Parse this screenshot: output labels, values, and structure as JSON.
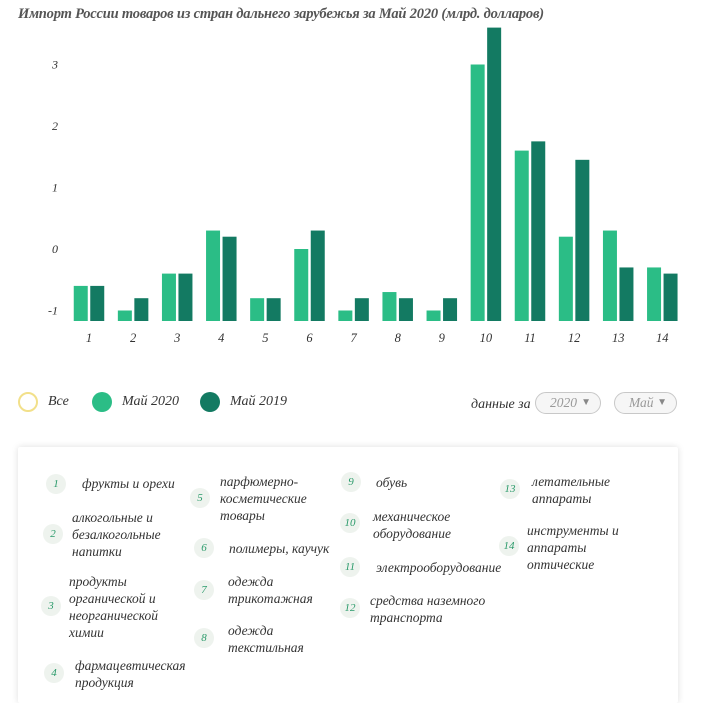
{
  "title": "Импорт России товаров из стран дальнего зарубежья за Май 2020 (млрд. долларов)",
  "chart_data": {
    "type": "bar",
    "categories": [
      "1",
      "2",
      "3",
      "4",
      "5",
      "6",
      "7",
      "8",
      "9",
      "10",
      "11",
      "12",
      "13",
      "14"
    ],
    "series": [
      {
        "name": "Май 2020",
        "color": "#2bbd86",
        "values": [
          -0.6,
          -1.0,
          -0.4,
          0.3,
          -0.8,
          0.0,
          -1.0,
          -0.7,
          -1.0,
          3.0,
          1.6,
          0.2,
          0.3,
          -0.3
        ]
      },
      {
        "name": "Май 2019",
        "color": "#137a62",
        "values": [
          -0.6,
          -0.8,
          -0.4,
          0.2,
          -0.8,
          0.3,
          -0.8,
          -0.8,
          -0.8,
          3.6,
          1.75,
          1.45,
          -0.3,
          -0.4
        ]
      }
    ],
    "ytick_labels": [
      "-1",
      "0",
      "1",
      "2",
      "3"
    ],
    "ylim": [
      -1.2,
      3.7
    ],
    "grid": false,
    "legend": "bottom"
  },
  "legend": {
    "all": "Все",
    "s2020": "Май 2020",
    "s2019": "Май 2019"
  },
  "filters": {
    "label": "данные за",
    "year": "2020",
    "month": "Май"
  },
  "categories": [
    {
      "num": "1",
      "name": "фрукты и орехи"
    },
    {
      "num": "2",
      "name": "алкогольные и безалкогольные напитки"
    },
    {
      "num": "3",
      "name": "продукты органической и неорганической химии"
    },
    {
      "num": "4",
      "name": "фармацевтическая продукция"
    },
    {
      "num": "5",
      "name": "парфюмерно-косметические товары"
    },
    {
      "num": "6",
      "name": "полимеры, каучук"
    },
    {
      "num": "7",
      "name": "одежда трикотажная"
    },
    {
      "num": "8",
      "name": "одежда текстильная"
    },
    {
      "num": "9",
      "name": "обувь"
    },
    {
      "num": "10",
      "name": "механическое оборудование"
    },
    {
      "num": "11",
      "name": "электрооборудование"
    },
    {
      "num": "12",
      "name": "средства наземного транспорта"
    },
    {
      "num": "13",
      "name": "летательные аппараты"
    },
    {
      "num": "14",
      "name": "инструменты и аппараты оптические"
    }
  ]
}
